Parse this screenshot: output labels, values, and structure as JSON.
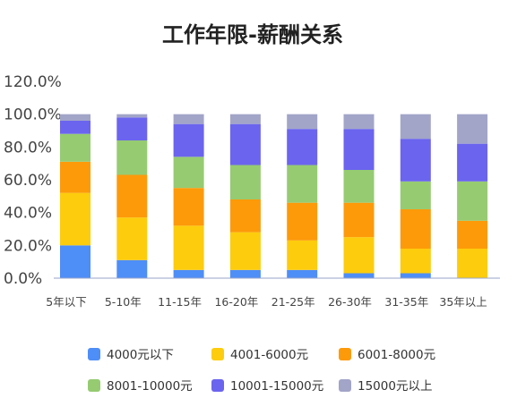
{
  "chart_data": {
    "type": "bar",
    "stacked": true,
    "title": "工作年限-薪酬关系",
    "xlabel": "",
    "ylabel": "",
    "ylim": [
      0,
      120
    ],
    "yticks": [
      "0.0%",
      "20.0%",
      "40.0%",
      "60.0%",
      "80.0%",
      "100.0%",
      "120.0%"
    ],
    "grid": false,
    "legend_position": "bottom",
    "categories": [
      "5年以下",
      "5-10年",
      "11-15年",
      "16-20年",
      "21-25年",
      "26-30年",
      "31-35年",
      "35年以上"
    ],
    "series": [
      {
        "name": "4000元以下",
        "color": "#4e8ef7",
        "values": [
          20,
          11,
          5,
          5,
          5,
          3,
          3,
          0
        ]
      },
      {
        "name": "4001-6000元",
        "color": "#fdcc0c",
        "values": [
          32,
          26,
          27,
          23,
          18,
          22,
          15,
          18
        ]
      },
      {
        "name": "6001-8000元",
        "color": "#fd9a09",
        "values": [
          19,
          26,
          23,
          20,
          23,
          21,
          24,
          17
        ]
      },
      {
        "name": "8001-10000元",
        "color": "#96cb72",
        "values": [
          17,
          21,
          19,
          21,
          23,
          20,
          17,
          24
        ]
      },
      {
        "name": "10001-15000元",
        "color": "#6b64ee",
        "values": [
          8,
          14,
          20,
          25,
          22,
          25,
          26,
          23
        ]
      },
      {
        "name": "15000元以上",
        "color": "#a2a5c8",
        "values": [
          4,
          2,
          6,
          6,
          9,
          9,
          15,
          18
        ]
      }
    ]
  }
}
